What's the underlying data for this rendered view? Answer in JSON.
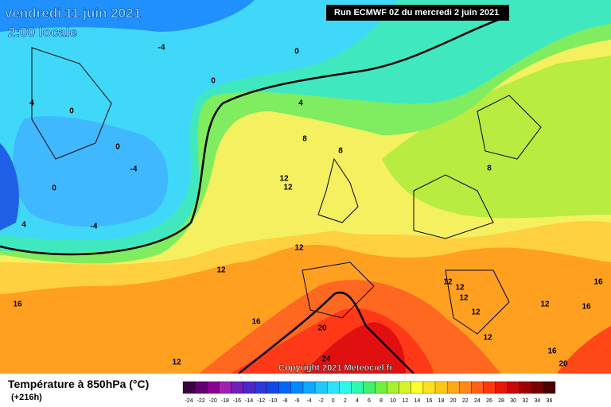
{
  "header": {
    "date": "vendredi 11 juin 2021",
    "time": "2:00 locale",
    "run": "Run ECMWF 0Z du mercredi 2 juin 2021"
  },
  "copyright": "Copyright 2021 Meteociel.fr",
  "legend": {
    "title": "Température à 850hPa (°C)",
    "lead": "(+216h)",
    "ticks": [
      -24,
      -22,
      -20,
      -18,
      -16,
      -14,
      -12,
      -10,
      -8,
      -6,
      -4,
      -2,
      0,
      2,
      4,
      6,
      8,
      10,
      12,
      14,
      16,
      18,
      20,
      22,
      24,
      26,
      28,
      30,
      32,
      34,
      36
    ],
    "colors": [
      "#3a0040",
      "#600070",
      "#8a0090",
      "#a020b0",
      "#7020b8",
      "#4a28c8",
      "#2a38d8",
      "#1048e8",
      "#0068f4",
      "#0088ff",
      "#10a8ff",
      "#20c8ff",
      "#30e0ff",
      "#30f8e8",
      "#30f8b0",
      "#40f070",
      "#70f040",
      "#a8f030",
      "#d8f428",
      "#ffff30",
      "#ffe020",
      "#ffc818",
      "#ffa818",
      "#ff8818",
      "#ff6018",
      "#ff3810",
      "#e81808",
      "#c80808",
      "#a00000",
      "#780000",
      "#4a0000"
    ]
  },
  "contour_labels": [
    -4,
    0,
    0,
    4,
    0,
    4,
    0,
    -4,
    0,
    8,
    8,
    -4,
    4,
    12,
    12,
    8,
    12,
    12,
    16,
    16,
    20,
    12,
    12,
    12,
    12,
    12,
    16,
    16,
    12,
    16,
    20,
    24,
    12
  ]
}
